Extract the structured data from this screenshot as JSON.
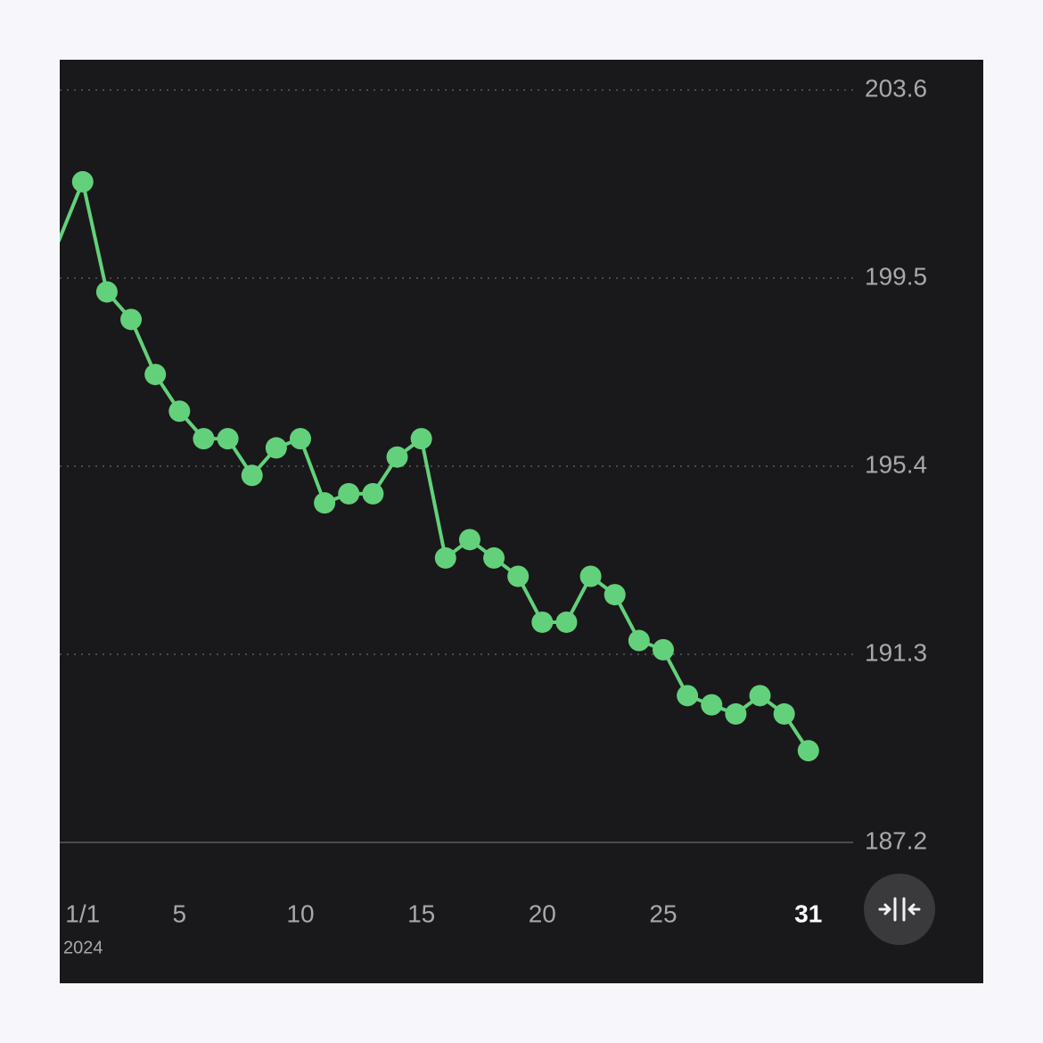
{
  "chart_data": {
    "type": "line",
    "x": [
      0,
      1,
      2,
      3,
      4,
      5,
      6,
      7,
      8,
      9,
      10,
      11,
      12,
      13,
      14,
      15,
      16,
      17,
      18,
      19,
      20,
      21,
      22,
      23,
      24,
      25,
      26,
      27,
      28,
      29,
      30,
      31
    ],
    "series": [
      {
        "color": "#63d17b",
        "values": [
          200.3,
          201.6,
          199.2,
          198.6,
          197.4,
          196.6,
          196.0,
          196.0,
          195.2,
          195.8,
          196.0,
          194.6,
          194.8,
          194.8,
          195.6,
          196.0,
          193.4,
          193.8,
          193.4,
          193.0,
          192.0,
          192.0,
          193.0,
          192.6,
          191.6,
          191.4,
          190.4,
          190.2,
          190.0,
          190.4,
          190.0,
          189.2
        ]
      }
    ],
    "xlim": [
      0.05,
      32.85
    ],
    "ylim": [
      187.2,
      203.6
    ],
    "xticks": [
      {
        "value": 1,
        "label": "1/1"
      },
      5,
      10,
      15,
      20,
      25,
      31
    ],
    "yticks": [
      187.2,
      191.3,
      195.4,
      199.5,
      203.6
    ],
    "year_label": "2024",
    "selected_x": 31,
    "grid": true
  }
}
